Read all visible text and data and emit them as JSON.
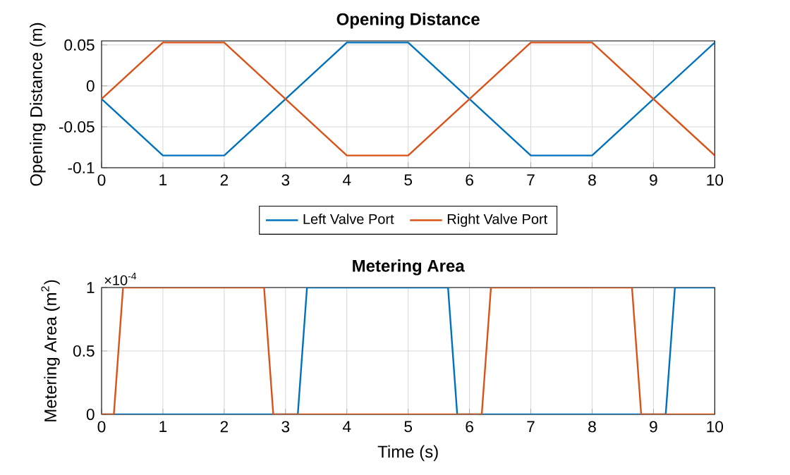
{
  "chart_data": [
    {
      "type": "line",
      "title": "Opening Distance",
      "ylabel": "Opening Distance (m)",
      "xlim": [
        0,
        10
      ],
      "ylim": [
        -0.1,
        0.055
      ],
      "xticks": [
        0,
        1,
        2,
        3,
        4,
        5,
        6,
        7,
        8,
        9,
        10
      ],
      "yticks": [
        -0.1,
        -0.05,
        0,
        0.05
      ],
      "grid": true,
      "legend": "bottom",
      "series": [
        {
          "name": "Left Valve Port",
          "color": "#0072bd",
          "x": [
            0,
            1,
            2,
            4,
            5,
            7,
            8,
            10
          ],
          "values": [
            -0.016,
            -0.085,
            -0.085,
            0.053,
            0.053,
            -0.085,
            -0.085,
            0.053
          ]
        },
        {
          "name": "Right Valve Port",
          "color": "#d95319",
          "x": [
            0,
            1,
            2,
            4,
            5,
            7,
            8,
            10
          ],
          "values": [
            -0.016,
            0.053,
            0.053,
            -0.085,
            -0.085,
            0.053,
            0.053,
            -0.085
          ]
        }
      ]
    },
    {
      "type": "line",
      "title": "Metering Area",
      "xlabel": "Time (s)",
      "ylabel": "Metering Area (m$^{2}$)",
      "annotations": [
        "×10$^{-4}$"
      ],
      "xlim": [
        0,
        10
      ],
      "ylim": [
        0,
        1
      ],
      "xticks": [
        0,
        1,
        2,
        3,
        4,
        5,
        6,
        7,
        8,
        9,
        10
      ],
      "yticks": [
        0,
        0.5,
        1
      ],
      "grid": true,
      "series": [
        {
          "color": "#0072bd",
          "x": [
            0,
            3.2,
            3.35,
            5.65,
            5.8,
            9.2,
            9.35,
            10
          ],
          "values": [
            0,
            0,
            1,
            1,
            0,
            0,
            1,
            1
          ]
        },
        {
          "color": "#d95319",
          "x": [
            0,
            0.2,
            0.35,
            2.65,
            2.8,
            6.2,
            6.35,
            8.65,
            8.8,
            10
          ],
          "values": [
            0,
            0,
            1,
            1,
            0,
            0,
            1,
            1,
            0,
            0
          ]
        }
      ]
    }
  ]
}
